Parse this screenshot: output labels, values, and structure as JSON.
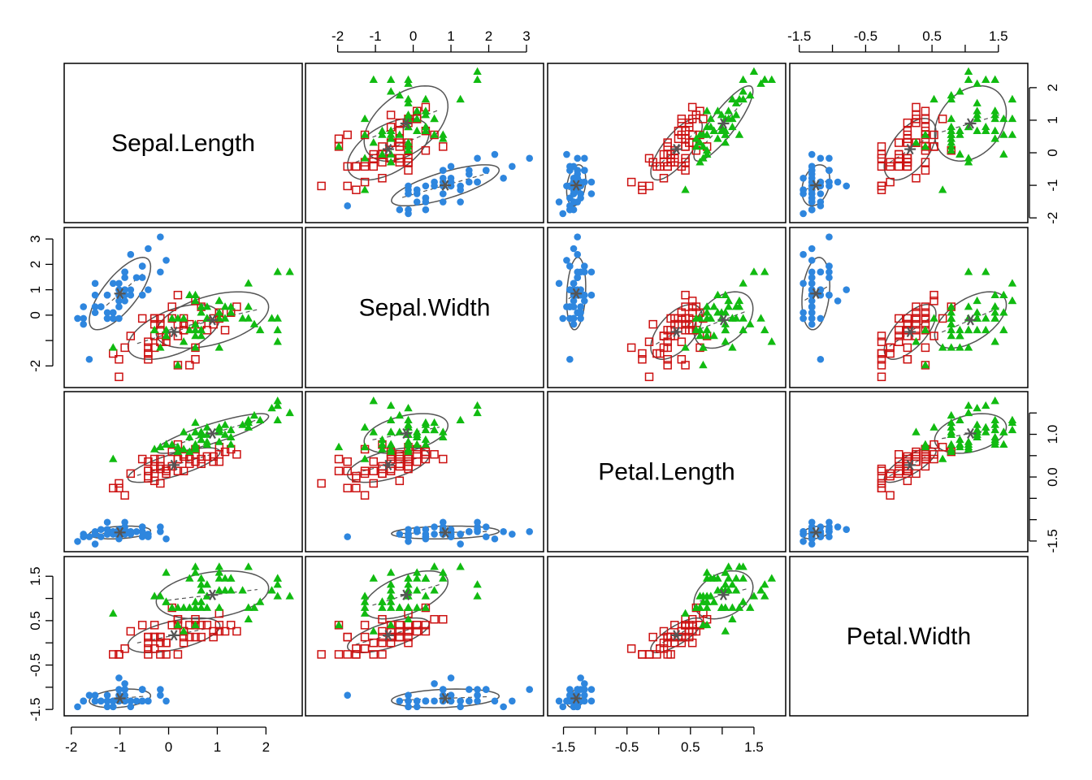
{
  "chart_data": {
    "type": "scatter",
    "variables": [
      "Sepal.Length",
      "Sepal.Width",
      "Petal.Length",
      "Petal.Width"
    ],
    "ranges": {
      "Sepal.Length": [
        -1.95,
        2.55
      ],
      "Sepal.Width": [
        -2.6,
        3.2
      ],
      "Petal.Length": [
        -1.6,
        1.85
      ],
      "Petal.Width": [
        -1.5,
        1.8
      ]
    },
    "axis_ticks": {
      "Sepal.Length": [
        -2,
        -1,
        0,
        1,
        2
      ],
      "Sepal.Width": [
        -2,
        -1,
        0,
        1,
        2,
        3
      ],
      "Petal.Length": [
        -1.5,
        -1,
        -0.5,
        0,
        0.5,
        1,
        1.5
      ],
      "Petal.Width": [
        -1.5,
        -1,
        -0.5,
        0,
        0.5,
        1,
        1.5
      ]
    },
    "axis_tick_labels": {
      "Sepal.Length": [
        "-2",
        "-1",
        "0",
        "1",
        "2"
      ],
      "Sepal.Width": [
        "-2",
        "-1",
        "0",
        "1",
        "2",
        "3"
      ],
      "Petal.Length": [
        "-1.5",
        "",
        "-0.5",
        "",
        "0.5",
        "",
        "1.5"
      ],
      "Petal.Width": [
        "-1.5",
        "",
        "-0.5",
        "",
        "0.5",
        "",
        "1.5"
      ]
    },
    "left_axis_tick_labels": {
      "Sepal.Width": [
        "-2",
        "",
        "0",
        "1",
        "2",
        "3"
      ],
      "Petal.Width": [
        "-1.5",
        "",
        "-0.5",
        "",
        "0.5",
        "",
        "1.5"
      ]
    },
    "right_axis_tick_labels": {
      "Sepal.Length": [
        "-2",
        "-1",
        "0",
        "1",
        "2"
      ],
      "Petal.Length": [
        "-1.5",
        "",
        "",
        "0.0",
        "",
        "1.0",
        ""
      ]
    },
    "axes": {
      "top": [
        "Sepal.Width",
        "Petal.Width"
      ],
      "bottom": [
        "Sepal.Length",
        "Petal.Length"
      ],
      "left": [
        "Sepal.Width",
        "Petal.Width"
      ],
      "right": [
        "Sepal.Length",
        "Petal.Length"
      ]
    },
    "grid": false,
    "legend": "none",
    "groups": [
      {
        "color": "#2E86DE",
        "marker": "circle",
        "mean": [
          -1.0,
          0.85,
          -1.3,
          -1.25
        ],
        "sd": [
          0.42,
          0.95,
          0.1,
          0.14
        ],
        "corr": [
          [
            1,
            0.74,
            0.27,
            0.28
          ],
          [
            0.74,
            1,
            0.18,
            0.23
          ],
          [
            0.27,
            0.18,
            1,
            0.33
          ],
          [
            0.28,
            0.23,
            0.33,
            1
          ]
        ],
        "points": [
          [
            -0.9,
            1.0,
            -1.34,
            -1.31
          ],
          [
            -1.14,
            -0.13,
            -1.34,
            -1.31
          ],
          [
            -1.39,
            0.33,
            -1.4,
            -1.31
          ],
          [
            -1.51,
            0.1,
            -1.28,
            -1.31
          ],
          [
            -1.02,
            1.25,
            -1.34,
            -1.31
          ],
          [
            -0.54,
            1.93,
            -1.17,
            -1.05
          ],
          [
            -1.51,
            0.79,
            -1.34,
            -1.18
          ],
          [
            -1.02,
            0.79,
            -1.28,
            -1.31
          ],
          [
            -1.75,
            -0.36,
            -1.34,
            -1.31
          ],
          [
            -1.14,
            0.1,
            -1.28,
            -1.44
          ],
          [
            -0.54,
            1.48,
            -1.28,
            -1.31
          ],
          [
            -1.26,
            0.79,
            -1.23,
            -1.31
          ],
          [
            -1.26,
            -0.13,
            -1.34,
            -1.44
          ],
          [
            -1.87,
            -0.13,
            -1.51,
            -1.44
          ],
          [
            -0.05,
            2.16,
            -1.45,
            -1.31
          ],
          [
            -0.17,
            3.08,
            -1.28,
            -1.05
          ],
          [
            -0.54,
            1.93,
            -1.4,
            -1.05
          ],
          [
            -0.9,
            1.0,
            -1.34,
            -1.18
          ],
          [
            -0.17,
            1.7,
            -1.17,
            -1.18
          ],
          [
            -0.9,
            1.7,
            -1.28,
            -1.18
          ],
          [
            -0.54,
            0.79,
            -1.17,
            -1.31
          ],
          [
            -0.9,
            1.48,
            -1.28,
            -1.05
          ],
          [
            -1.51,
            1.25,
            -1.57,
            -1.31
          ],
          [
            -0.9,
            0.56,
            -1.17,
            -0.92
          ],
          [
            -1.26,
            0.79,
            -1.06,
            -1.31
          ],
          [
            -1.02,
            -0.13,
            -1.23,
            -1.31
          ],
          [
            -1.02,
            0.79,
            -1.23,
            -1.05
          ],
          [
            -0.78,
            1.0,
            -1.28,
            -1.31
          ],
          [
            -0.78,
            0.79,
            -1.34,
            -1.31
          ],
          [
            -1.39,
            0.33,
            -1.23,
            -1.31
          ],
          [
            -1.26,
            0.1,
            -1.23,
            -1.31
          ],
          [
            -0.54,
            0.79,
            -1.28,
            -1.05
          ],
          [
            -0.78,
            2.39,
            -1.28,
            -1.44
          ],
          [
            -0.42,
            2.62,
            -1.34,
            -1.31
          ],
          [
            -1.14,
            0.1,
            -1.28,
            -1.31
          ],
          [
            -1.02,
            0.33,
            -1.45,
            -1.31
          ],
          [
            -0.42,
            1.0,
            -1.4,
            -1.31
          ],
          [
            -1.14,
            1.25,
            -1.34,
            -1.44
          ],
          [
            -1.75,
            -0.13,
            -1.4,
            -1.31
          ],
          [
            -0.9,
            0.79,
            -1.28,
            -1.31
          ],
          [
            -1.02,
            1.0,
            -1.4,
            -1.18
          ],
          [
            -1.63,
            -1.74,
            -1.4,
            -1.18
          ],
          [
            -1.75,
            0.33,
            -1.4,
            -1.31
          ],
          [
            -1.02,
            1.0,
            -1.23,
            -0.79
          ],
          [
            -0.9,
            1.7,
            -1.06,
            -1.05
          ],
          [
            -1.26,
            -0.13,
            -1.34,
            -1.18
          ],
          [
            -0.9,
            1.7,
            -1.23,
            -1.31
          ],
          [
            -1.51,
            0.33,
            -1.34,
            -1.31
          ],
          [
            -0.66,
            1.48,
            -1.28,
            -1.31
          ],
          [
            -1.02,
            0.56,
            -1.34,
            -1.31
          ]
        ]
      },
      {
        "color": "#CC1111",
        "marker": "square",
        "mean": [
          0.11,
          -0.66,
          0.28,
          0.17
        ],
        "sd": [
          0.63,
          0.72,
          0.27,
          0.26
        ],
        "corr": [
          [
            1,
            0.53,
            0.75,
            0.55
          ],
          [
            0.53,
            1,
            0.56,
            0.66
          ],
          [
            0.75,
            0.56,
            1,
            0.79
          ],
          [
            0.55,
            0.66,
            0.79,
            1
          ]
        ],
        "points": [
          [
            1.4,
            0.33,
            0.53,
            0.26
          ],
          [
            0.67,
            0.33,
            0.42,
            0.4
          ],
          [
            1.28,
            0.1,
            0.65,
            0.4
          ],
          [
            -0.42,
            -1.74,
            0.14,
            0.13
          ],
          [
            0.79,
            -0.59,
            0.48,
            0.4
          ],
          [
            -0.17,
            -0.59,
            0.42,
            0.13
          ],
          [
            0.55,
            0.56,
            0.53,
            0.53
          ],
          [
            -1.14,
            -1.51,
            -0.26,
            -0.26
          ],
          [
            0.92,
            -0.36,
            0.48,
            0.13
          ],
          [
            -0.78,
            -0.82,
            0.08,
            0.26
          ],
          [
            -1.02,
            -2.43,
            -0.15,
            -0.26
          ],
          [
            0.07,
            -0.13,
            0.25,
            0.4
          ],
          [
            0.19,
            -1.97,
            0.14,
            -0.26
          ],
          [
            0.31,
            -0.36,
            0.53,
            0.26
          ],
          [
            -0.29,
            -0.36,
            -0.09,
            0.13
          ],
          [
            1.04,
            0.1,
            0.36,
            0.26
          ],
          [
            -0.29,
            -0.13,
            0.42,
            0.4
          ],
          [
            -0.05,
            -0.82,
            0.19,
            -0.26
          ],
          [
            0.43,
            -1.97,
            0.42,
            0.4
          ],
          [
            -0.29,
            -1.28,
            0.08,
            -0.13
          ],
          [
            0.07,
            0.33,
            0.59,
            0.79
          ],
          [
            0.31,
            -0.59,
            0.14,
            0.13
          ],
          [
            0.55,
            -1.28,
            0.65,
            0.4
          ],
          [
            0.31,
            -0.59,
            0.53,
            0.0
          ],
          [
            0.67,
            -0.36,
            0.31,
            0.13
          ],
          [
            0.92,
            -0.13,
            0.36,
            0.26
          ],
          [
            1.16,
            -0.59,
            0.59,
            0.26
          ],
          [
            1.04,
            -0.13,
            0.7,
            0.66
          ],
          [
            0.19,
            -0.36,
            0.42,
            0.4
          ],
          [
            -0.17,
            -1.05,
            -0.15,
            -0.26
          ],
          [
            -0.42,
            -1.51,
            0.02,
            -0.13
          ],
          [
            -0.42,
            -1.51,
            -0.03,
            -0.26
          ],
          [
            -0.05,
            -0.82,
            0.08,
            0.0
          ],
          [
            0.19,
            -0.82,
            0.76,
            0.53
          ],
          [
            -0.54,
            -0.13,
            0.42,
            0.4
          ],
          [
            0.19,
            0.79,
            0.42,
            0.53
          ],
          [
            1.04,
            0.1,
            0.53,
            0.4
          ],
          [
            0.55,
            -1.74,
            0.36,
            0.13
          ],
          [
            -0.29,
            -0.13,
            0.19,
            0.13
          ],
          [
            -0.42,
            -1.28,
            0.14,
            0.13
          ],
          [
            -0.42,
            -1.05,
            0.36,
            0.0
          ],
          [
            0.31,
            -0.13,
            0.48,
            0.26
          ],
          [
            -0.05,
            -1.05,
            0.14,
            0.0
          ],
          [
            -1.02,
            -1.74,
            -0.26,
            -0.26
          ],
          [
            -0.29,
            -0.82,
            0.25,
            0.13
          ],
          [
            -0.17,
            -0.13,
            0.25,
            0.0
          ],
          [
            -0.17,
            -0.36,
            0.25,
            0.13
          ],
          [
            0.43,
            -0.36,
            0.31,
            0.13
          ],
          [
            -0.9,
            -1.28,
            -0.43,
            -0.13
          ],
          [
            -0.17,
            -0.59,
            0.19,
            0.13
          ]
        ]
      },
      {
        "color": "#11BB11",
        "marker": "triangle",
        "mean": [
          0.9,
          -0.19,
          1.02,
          1.08
        ],
        "sd": [
          0.77,
          0.74,
          0.31,
          0.36
        ],
        "corr": [
          [
            1,
            0.46,
            0.86,
            0.28
          ],
          [
            0.46,
            1,
            0.4,
            0.54
          ],
          [
            0.86,
            0.4,
            1,
            0.32
          ],
          [
            0.28,
            0.54,
            0.32,
            1
          ]
        ],
        "points": [
          [
            0.55,
            0.56,
            1.27,
            1.71
          ],
          [
            -0.05,
            -0.82,
            0.76,
            0.92
          ],
          [
            1.52,
            -0.13,
            1.22,
            1.18
          ],
          [
            0.55,
            -0.36,
            1.05,
            0.79
          ],
          [
            0.79,
            -0.13,
            1.16,
            1.31
          ],
          [
            2.12,
            -0.13,
            1.61,
            1.18
          ],
          [
            -1.14,
            -1.28,
            0.42,
            0.66
          ],
          [
            1.76,
            -0.36,
            1.44,
            0.79
          ],
          [
            1.04,
            -1.28,
            1.16,
            0.79
          ],
          [
            1.64,
            1.25,
            1.33,
            1.71
          ],
          [
            0.79,
            0.33,
            0.76,
            1.05
          ],
          [
            0.67,
            -0.82,
            0.87,
            0.92
          ],
          [
            1.16,
            -0.13,
            0.99,
            1.18
          ],
          [
            -0.17,
            -1.28,
            0.7,
            1.05
          ],
          [
            -0.05,
            -0.59,
            0.76,
            1.58
          ],
          [
            0.67,
            0.33,
            0.87,
            1.45
          ],
          [
            0.79,
            -0.13,
            0.99,
            0.79
          ],
          [
            2.24,
            1.7,
            1.67,
            1.31
          ],
          [
            2.24,
            -1.05,
            1.78,
            1.45
          ],
          [
            0.19,
            -1.97,
            0.7,
            0.4
          ],
          [
            1.28,
            0.33,
            1.1,
            1.45
          ],
          [
            -0.29,
            -0.59,
            0.65,
            1.05
          ],
          [
            2.24,
            -0.59,
            1.67,
            1.05
          ],
          [
            0.55,
            -0.82,
            0.65,
            0.79
          ],
          [
            1.04,
            0.56,
            1.1,
            1.18
          ],
          [
            1.64,
            0.33,
            1.27,
            0.79
          ],
          [
            0.43,
            -0.59,
            0.59,
            0.79
          ],
          [
            0.31,
            -0.13,
            0.65,
            0.79
          ],
          [
            0.67,
            -0.59,
            1.05,
            1.18
          ],
          [
            1.64,
            -0.13,
            1.16,
            0.53
          ],
          [
            1.88,
            -0.59,
            1.33,
            0.92
          ],
          [
            2.49,
            1.7,
            1.5,
            1.05
          ],
          [
            0.67,
            -0.59,
            1.05,
            1.31
          ],
          [
            0.55,
            -0.59,
            0.76,
            0.4
          ],
          [
            0.31,
            -1.05,
            1.05,
            0.26
          ],
          [
            2.24,
            -0.13,
            1.33,
            1.45
          ],
          [
            0.55,
            0.79,
            1.05,
            1.58
          ],
          [
            0.67,
            0.1,
            0.99,
            0.79
          ],
          [
            0.19,
            -0.13,
            0.59,
            0.79
          ],
          [
            1.28,
            0.1,
            0.93,
            1.18
          ],
          [
            1.04,
            0.1,
            1.05,
            1.58
          ],
          [
            1.28,
            0.1,
            0.76,
            1.45
          ],
          [
            -0.05,
            -0.82,
            0.76,
            0.92
          ],
          [
            1.16,
            0.33,
            1.22,
            1.45
          ],
          [
            1.04,
            0.56,
            1.1,
            1.71
          ],
          [
            1.04,
            -0.13,
            0.82,
            1.45
          ],
          [
            0.55,
            -1.28,
            0.7,
            0.92
          ],
          [
            0.79,
            -0.13,
            0.82,
            1.05
          ],
          [
            0.43,
            0.79,
            0.93,
            1.45
          ],
          [
            0.07,
            -0.13,
            0.76,
            0.79
          ]
        ]
      }
    ]
  }
}
